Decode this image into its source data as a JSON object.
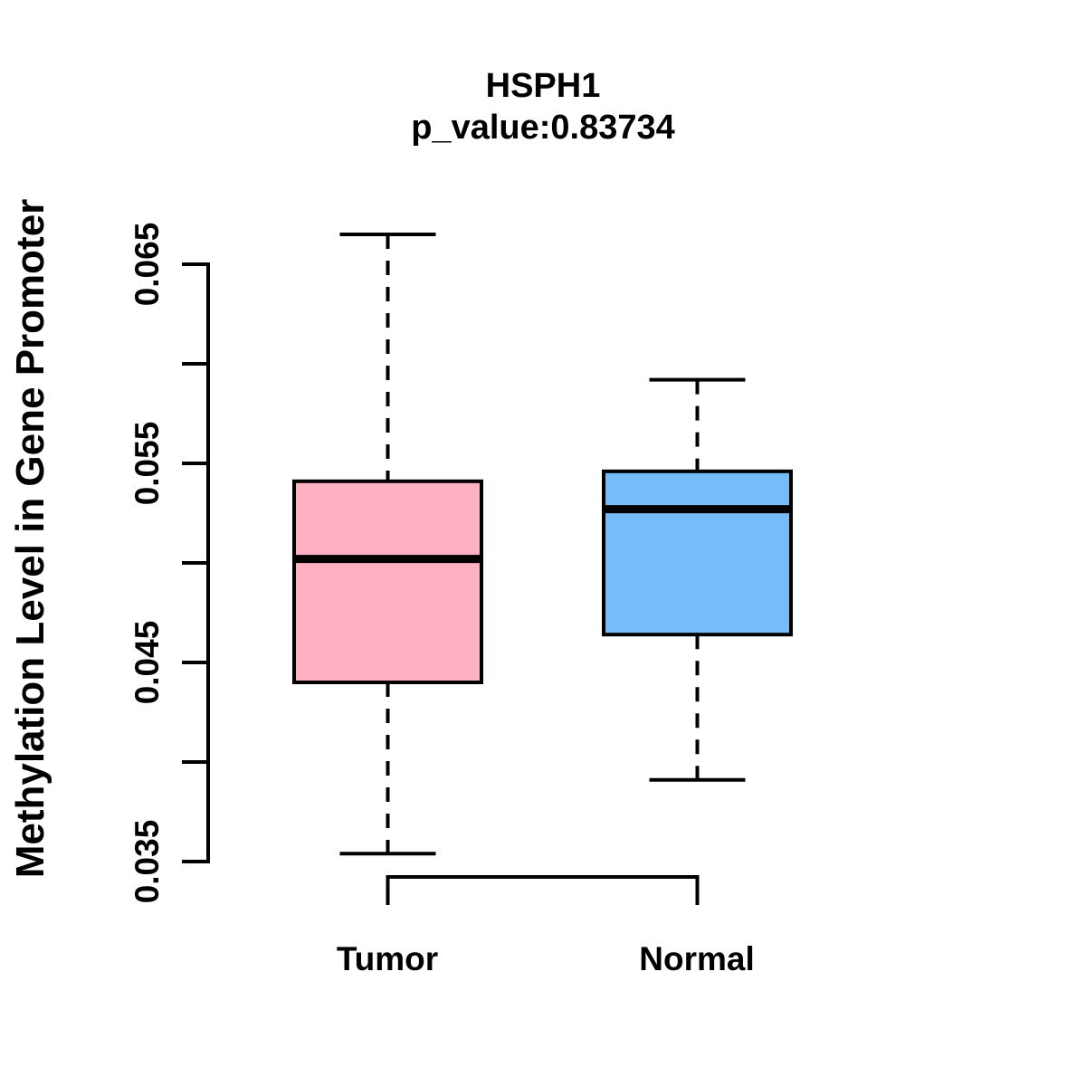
{
  "chart_data": {
    "type": "boxplot",
    "title": "HSPH1",
    "subtitle": "p_value:0.83734",
    "p_value": 0.83734,
    "ylabel": "Methylation Level in Gene Promoter",
    "categories": [
      "Tumor",
      "Normal"
    ],
    "ylim": [
      0.0335,
      0.0665
    ],
    "grid": false,
    "legend": false,
    "yticks": [
      {
        "value": 0.065,
        "label": "0.065"
      },
      {
        "value": 0.06,
        "label": ""
      },
      {
        "value": 0.055,
        "label": "0.055"
      },
      {
        "value": 0.05,
        "label": ""
      },
      {
        "value": 0.045,
        "label": "0.045"
      },
      {
        "value": 0.04,
        "label": ""
      },
      {
        "value": 0.035,
        "label": "0.035"
      }
    ],
    "series": [
      {
        "name": "Tumor",
        "color": "#FFB1C2",
        "whisker_low": 0.0354,
        "q1": 0.044,
        "median": 0.0502,
        "q3": 0.0541,
        "whisker_high": 0.0665
      },
      {
        "name": "Normal",
        "color": "#75BDF8",
        "whisker_low": 0.0391,
        "q1": 0.0464,
        "median": 0.0527,
        "q3": 0.0546,
        "whisker_high": 0.0592
      }
    ],
    "line_color": "#000000",
    "background": "#FFFFFF"
  }
}
